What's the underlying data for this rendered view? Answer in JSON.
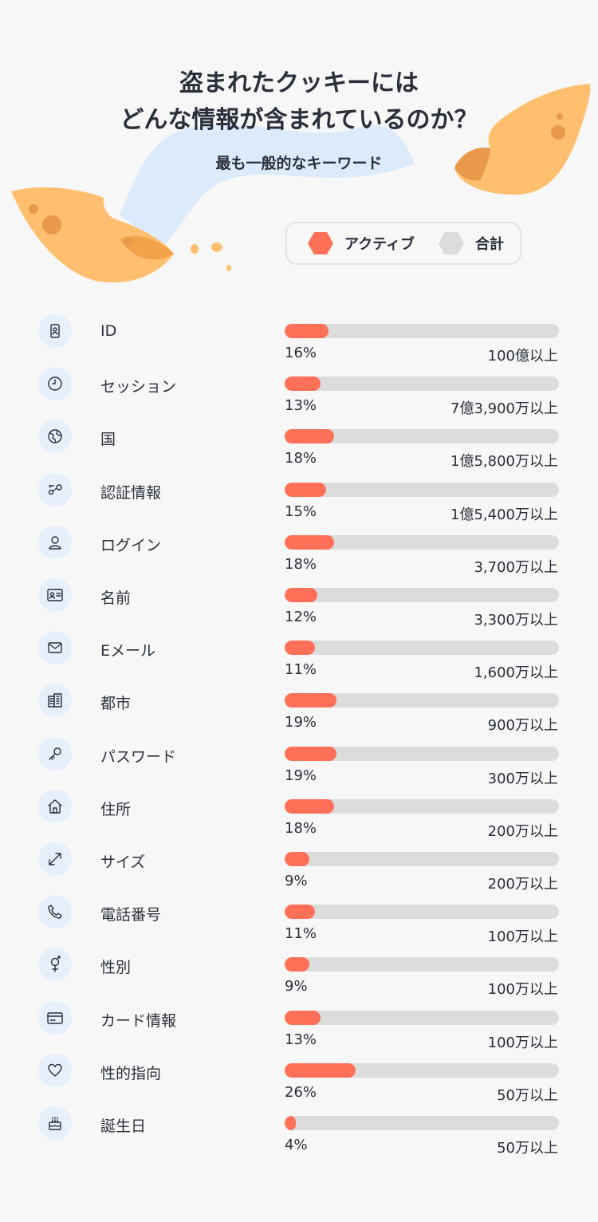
{
  "header": {
    "title_line1": "盗まれたクッキーには",
    "title_line2": "どんな情報が含まれているのか？",
    "subtitle": "最も一般的なキーワード"
  },
  "legend": {
    "active_label": "アクティブ",
    "total_label": "合計",
    "active_color": "#ff7058",
    "total_color": "#dcdcdc"
  },
  "chart_data": {
    "type": "bar",
    "title": "盗まれたクッキーにはどんな情報が含まれているのか？",
    "subtitle": "最も一般的なキーワード",
    "series": [
      {
        "name": "アクティブ",
        "values": [
          16,
          13,
          18,
          15,
          18,
          12,
          11,
          19,
          19,
          18,
          9,
          11,
          9,
          13,
          26,
          4
        ]
      },
      {
        "name": "合計",
        "values": [
          "100億以上",
          "7億3,900万以上",
          "1億5,800万以上",
          "1億5,400万以上",
          "3,700万以上",
          "3,300万以上",
          "1,600万以上",
          "900万以上",
          "300万以上",
          "200万以上",
          "200万以上",
          "100万以上",
          "100万以上",
          "100万以上",
          "50万以上",
          "50万以上"
        ]
      }
    ],
    "categories": [
      "ID",
      "セッション",
      "国",
      "認証情報",
      "ログイン",
      "名前",
      "Eメール",
      "都市",
      "パスワード",
      "住所",
      "サイズ",
      "電話番号",
      "性別",
      "カード情報",
      "性的指向",
      "誕生日"
    ],
    "ylim": [
      0,
      100
    ],
    "rows": [
      {
        "label": "ID",
        "icon": "id-badge-icon",
        "percent": 16,
        "percent_text": "16%",
        "total_text": "100億以上"
      },
      {
        "label": "セッション",
        "icon": "clock-icon",
        "percent": 13,
        "percent_text": "13%",
        "total_text": "7億3,900万以上"
      },
      {
        "label": "国",
        "icon": "globe-icon",
        "percent": 18,
        "percent_text": "18%",
        "total_text": "1億5,800万以上"
      },
      {
        "label": "認証情報",
        "icon": "key-icon",
        "percent": 15,
        "percent_text": "15%",
        "total_text": "1億5,400万以上"
      },
      {
        "label": "ログイン",
        "icon": "user-icon",
        "percent": 18,
        "percent_text": "18%",
        "total_text": "3,700万以上"
      },
      {
        "label": "名前",
        "icon": "id-card-icon",
        "percent": 12,
        "percent_text": "12%",
        "total_text": "3,300万以上"
      },
      {
        "label": "Eメール",
        "icon": "envelope-icon",
        "percent": 11,
        "percent_text": "11%",
        "total_text": "1,600万以上"
      },
      {
        "label": "都市",
        "icon": "buildings-icon",
        "percent": 19,
        "percent_text": "19%",
        "total_text": "900万以上"
      },
      {
        "label": "パスワード",
        "icon": "password-key-icon",
        "percent": 19,
        "percent_text": "19%",
        "total_text": "300万以上"
      },
      {
        "label": "住所",
        "icon": "house-icon",
        "percent": 18,
        "percent_text": "18%",
        "total_text": "200万以上"
      },
      {
        "label": "サイズ",
        "icon": "resize-arrows-icon",
        "percent": 9,
        "percent_text": "9%",
        "total_text": "200万以上"
      },
      {
        "label": "電話番号",
        "icon": "phone-icon",
        "percent": 11,
        "percent_text": "11%",
        "total_text": "100万以上"
      },
      {
        "label": "性別",
        "icon": "gender-icon",
        "percent": 9,
        "percent_text": "9%",
        "total_text": "100万以上"
      },
      {
        "label": "カード情報",
        "icon": "credit-card-icon",
        "percent": 13,
        "percent_text": "13%",
        "total_text": "100万以上"
      },
      {
        "label": "性的指向",
        "icon": "heart-icon",
        "percent": 26,
        "percent_text": "26%",
        "total_text": "50万以上"
      },
      {
        "label": "誕生日",
        "icon": "birthday-cake-icon",
        "percent": 4,
        "percent_text": "4%",
        "total_text": "50万以上"
      }
    ]
  }
}
